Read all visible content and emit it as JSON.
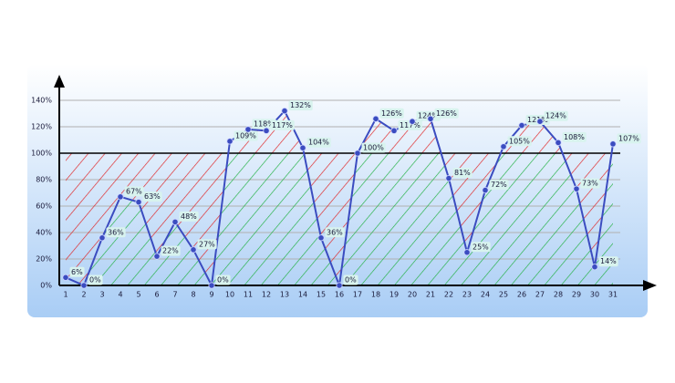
{
  "chart_data": {
    "type": "line",
    "categories": [
      "1",
      "2",
      "3",
      "4",
      "5",
      "6",
      "7",
      "8",
      "9",
      "10",
      "11",
      "12",
      "13",
      "14",
      "15",
      "16",
      "17",
      "18",
      "19",
      "20",
      "21",
      "22",
      "23",
      "24",
      "25",
      "26",
      "27",
      "28",
      "29",
      "30",
      "31"
    ],
    "series": [
      {
        "name": null,
        "color": "#3b4cc0",
        "values": [
          6,
          0,
          36,
          67,
          63,
          22,
          48,
          27,
          0,
          109,
          118,
          117,
          132,
          104,
          36,
          0,
          100,
          126,
          117,
          124,
          126,
          81,
          25,
          72,
          105,
          121,
          124,
          108,
          73,
          14,
          107
        ],
        "value_labels": [
          "6%",
          "0%",
          "36%",
          "67%",
          "63%",
          "22%",
          "48%",
          "27%",
          "0%",
          "109%",
          "118%",
          "117%",
          "132%",
          "104%",
          "36%",
          "0%",
          "100%",
          "126%",
          "117%",
          "124%",
          "126%",
          "81%",
          "25%",
          "72%",
          "105%",
          "121%",
          "124%",
          "108%",
          "73%",
          "14%",
          "107%"
        ]
      }
    ],
    "ylim": [
      0,
      140
    ],
    "yticks": [
      {
        "value": 0,
        "label": "0%"
      },
      {
        "value": 20,
        "label": "20%"
      },
      {
        "value": 40,
        "label": "40%"
      },
      {
        "value": 60,
        "label": "60%"
      },
      {
        "value": 80,
        "label": "80%"
      },
      {
        "value": 100,
        "label": "100%"
      },
      {
        "value": 120,
        "label": "120%"
      },
      {
        "value": 140,
        "label": "140%"
      }
    ],
    "reference_line": 100,
    "above_color": "#e02020",
    "below_color": "#20b040",
    "grid": true
  }
}
